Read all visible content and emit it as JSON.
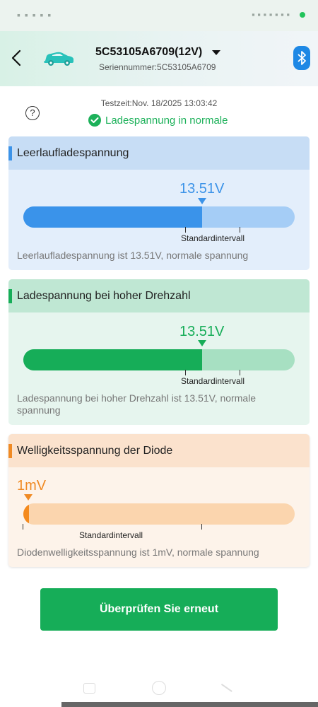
{
  "header": {
    "device_title": "5C53105A6709(12V)",
    "serial_label": "Seriennummer:5C53105A6709"
  },
  "summary": {
    "test_time": "Testzeit:Nov. 18/2025 13:03:42",
    "help_icon_glyph": "?",
    "status_text": "Ladespannung in normale"
  },
  "cards": [
    {
      "title": "Leerlaufladespannung",
      "value_label": "13.51V",
      "fill_fraction": 0.66,
      "range_label": "Standardintervall",
      "description": "Leerlaufladespannung ist 13.51V, normale spannung",
      "accent_color": "#3c93e8"
    },
    {
      "title": "Ladespannung bei hoher Drehzahl",
      "value_label": "13.51V",
      "fill_fraction": 0.66,
      "range_label": "Standardintervall",
      "description": "Ladespannung bei hoher Drehzahl ist 13.51V, normale spannung",
      "accent_color": "#16ad58"
    },
    {
      "title": "Welligkeitsspannung der Diode",
      "value_label": "1mV",
      "fill_fraction": 0.02,
      "range_label": "Standardintervall",
      "description": "Diodenwelligkeitsspannung ist 1mV, normale spannung",
      "accent_color": "#f08a24"
    }
  ],
  "actions": {
    "recheck_label": "Überprüfen Sie erneut"
  },
  "colors": {
    "primary_green": "#16ad58",
    "bluetooth_blue": "#1e88e5"
  },
  "icons": {
    "back": "back-arrow-icon",
    "vehicle": "car-icon",
    "dropdown": "triangle-down-icon",
    "bluetooth": "bluetooth-icon",
    "help": "question-circle-icon",
    "status": "check-circle-icon"
  }
}
